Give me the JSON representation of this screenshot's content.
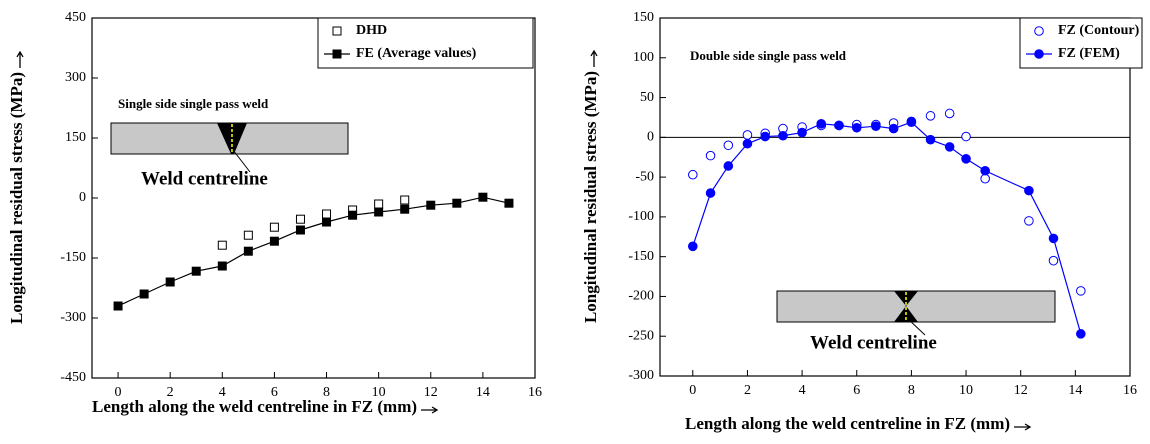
{
  "chart_data": [
    {
      "type": "line",
      "x_label": "Length along the weld centreline in FZ (mm)",
      "y_label": "Longitudinal residual stress (MPa)",
      "xlim": [
        -1,
        16
      ],
      "xticks": [
        0,
        2,
        4,
        6,
        8,
        10,
        12,
        14,
        16
      ],
      "ylim": [
        -450,
        450
      ],
      "yticks": [
        -450,
        -300,
        -150,
        0,
        150,
        300,
        450
      ],
      "annotations": [
        "Single side single pass weld",
        "Weld centreline"
      ],
      "zero_line": false,
      "series": [
        {
          "name": "DHD",
          "color": "#000000",
          "marker": "open-square",
          "line": false,
          "x": [
            4,
            5,
            6,
            7,
            8,
            9,
            10,
            11
          ],
          "values": [
            -118,
            -93,
            -73,
            -53,
            -40,
            -30,
            -15,
            -5
          ]
        },
        {
          "name": "FE (Average values)",
          "color": "#000000",
          "marker": "filled-square",
          "line": true,
          "x": [
            0,
            1,
            2,
            3,
            4,
            5,
            6,
            7,
            8,
            9,
            10,
            11,
            12,
            13,
            14,
            15
          ],
          "values": [
            -270,
            -240,
            -210,
            -183,
            -170,
            -133,
            -108,
            -80,
            -60,
            -43,
            -35,
            -28,
            -18,
            -13,
            2,
            -13
          ]
        }
      ]
    },
    {
      "type": "line",
      "x_label": "Length along the weld centreline in FZ (mm)",
      "y_label": "Longitudinal residual stress (MPa)",
      "xlim": [
        -1.2,
        16
      ],
      "xticks": [
        0,
        2,
        4,
        6,
        8,
        10,
        12,
        14,
        16
      ],
      "ylim": [
        -300,
        150
      ],
      "yticks": [
        -300,
        -250,
        -200,
        -150,
        -100,
        -50,
        0,
        50,
        100,
        150
      ],
      "annotations": [
        "Double side single pass weld",
        "Weld centreline"
      ],
      "zero_line": true,
      "series": [
        {
          "name": "FZ (Contour)",
          "color": "#0000ff",
          "marker": "open-circle",
          "line": false,
          "x": [
            0,
            0.65,
            1.3,
            2.0,
            2.65,
            3.3,
            4.0,
            4.7,
            5.35,
            6.0,
            6.7,
            7.35,
            8.0,
            8.7,
            9.4,
            10.0,
            10.7,
            12.3,
            13.2,
            14.2
          ],
          "values": [
            -47,
            -23,
            -10,
            3,
            5,
            11,
            13,
            15,
            15,
            16,
            16,
            18,
            20,
            27,
            30,
            1,
            -52,
            -105,
            -155,
            -193
          ]
        },
        {
          "name": "FZ (FEM)",
          "color": "#0000ff",
          "marker": "filled-circle",
          "line": true,
          "x": [
            0,
            0.65,
            1.3,
            2.0,
            2.65,
            3.3,
            4.0,
            4.7,
            5.35,
            6.0,
            6.7,
            7.35,
            8.0,
            8.7,
            9.4,
            10.0,
            10.7,
            12.3,
            13.2,
            14.2
          ],
          "values": [
            -137,
            -70,
            -36,
            -8,
            1,
            2,
            6,
            17,
            15,
            12,
            14,
            11,
            19,
            -3,
            -12,
            -27,
            -42,
            -67,
            -127,
            -247
          ]
        }
      ]
    }
  ]
}
